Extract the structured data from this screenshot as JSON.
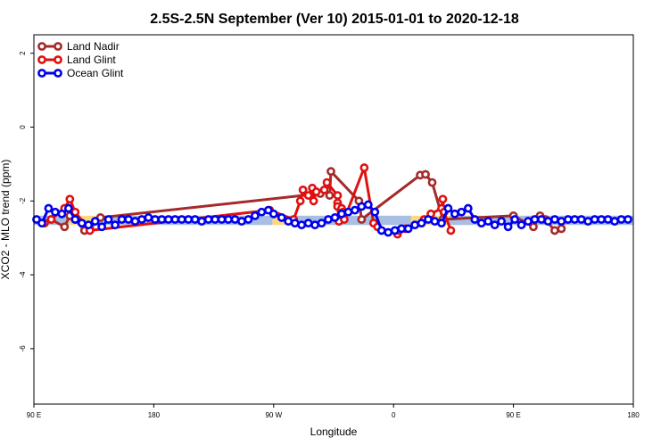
{
  "chart_data": {
    "type": "line",
    "title": "2.5S-2.5N September (Ver 10)   2015-01-01 to 2020-12-18",
    "xlabel": "Longitude",
    "ylabel": "XCO2 - MLO trend (ppm)",
    "xlim": [
      90,
      540
    ],
    "ylim": [
      -7.5,
      2.5
    ],
    "x_ticks": [
      {
        "value": 90,
        "label": "90 E"
      },
      {
        "value": 180,
        "label": "180"
      },
      {
        "value": 270,
        "label": "90 W"
      },
      {
        "value": 360,
        "label": "0"
      },
      {
        "value": 450,
        "label": "90 E"
      },
      {
        "value": 540,
        "label": "180"
      }
    ],
    "y_ticks": [
      {
        "value": 2,
        "label": "2"
      },
      {
        "value": 0,
        "label": "0"
      },
      {
        "value": -2,
        "label": "-2"
      },
      {
        "value": -4,
        "label": "-4"
      },
      {
        "value": -6,
        "label": "-6"
      }
    ],
    "legend_position": "top-left",
    "bands": [
      {
        "color": "#fdd882",
        "x_start": 90,
        "x_end": 540,
        "y_low": -2.65,
        "y_high": -2.4
      },
      {
        "color": "#a8bfe3",
        "segments": [
          [
            90,
            116
          ],
          [
            137,
            269
          ],
          [
            279,
            373
          ],
          [
            402,
            540
          ]
        ],
        "y_low": -2.65,
        "y_high": -2.4
      }
    ],
    "series": [
      {
        "name": "Land Nadir",
        "color": "#a52a2a",
        "x": [
          103,
          113,
          117,
          121,
          128,
          132,
          140,
          305,
          310,
          312,
          313,
          334,
          336,
          380,
          384,
          389,
          397,
          450,
          465,
          470,
          474,
          481,
          486
        ],
        "y": [
          -2.5,
          -2.7,
          -2.4,
          -2.5,
          -2.8,
          -2.75,
          -2.45,
          -1.8,
          -1.7,
          -1.85,
          -1.2,
          -2.0,
          -2.5,
          -1.3,
          -1.28,
          -1.5,
          -2.5,
          -2.4,
          -2.7,
          -2.4,
          -2.5,
          -2.8,
          -2.75
        ]
      },
      {
        "name": "Land Glint",
        "color": "#e01010",
        "x": [
          98,
          103,
          113,
          117,
          121,
          132,
          267,
          285,
          290,
          292,
          296,
          299,
          300,
          302,
          308,
          310,
          318,
          318,
          318,
          319,
          321,
          321,
          322,
          323,
          338,
          345,
          348,
          363,
          364,
          369,
          383,
          388,
          396,
          397,
          398,
          403
        ],
        "y": [
          -2.6,
          -2.5,
          -2.2,
          -1.95,
          -2.3,
          -2.8,
          -2.25,
          -2.5,
          -2.0,
          -1.7,
          -1.85,
          -1.65,
          -2.0,
          -1.75,
          -1.7,
          -1.5,
          -1.85,
          -2.05,
          -2.15,
          -2.55,
          -2.2,
          -2.35,
          -2.3,
          -2.5,
          -1.1,
          -2.6,
          -2.7,
          -2.9,
          -2.8,
          -2.75,
          -2.5,
          -2.35,
          -2.2,
          -1.95,
          -2.3,
          -2.8
        ]
      },
      {
        "name": "Ocean Glint",
        "color": "#0000ee",
        "x": [
          92,
          96,
          101,
          106,
          111,
          116,
          121,
          126,
          131,
          136,
          141,
          146,
          151,
          156,
          161,
          166,
          171,
          176,
          181,
          186,
          191,
          196,
          201,
          206,
          211,
          216,
          221,
          226,
          231,
          236,
          241,
          246,
          251,
          256,
          261,
          266,
          270,
          276,
          281,
          286,
          291,
          296,
          301,
          306,
          311,
          316,
          321,
          326,
          331,
          336,
          341,
          346,
          351,
          356,
          361,
          366,
          371,
          376,
          381,
          386,
          391,
          396,
          401,
          406,
          411,
          416,
          421,
          426,
          431,
          436,
          441,
          446,
          451,
          456,
          461,
          466,
          471,
          476,
          481,
          486,
          491,
          496,
          501,
          506,
          511,
          516,
          521,
          526,
          531,
          536
        ],
        "y": [
          -2.5,
          -2.6,
          -2.2,
          -2.3,
          -2.35,
          -2.2,
          -2.5,
          -2.6,
          -2.65,
          -2.55,
          -2.7,
          -2.5,
          -2.65,
          -2.5,
          -2.5,
          -2.55,
          -2.5,
          -2.45,
          -2.5,
          -2.5,
          -2.5,
          -2.5,
          -2.5,
          -2.5,
          -2.5,
          -2.55,
          -2.5,
          -2.5,
          -2.5,
          -2.5,
          -2.5,
          -2.55,
          -2.5,
          -2.4,
          -2.3,
          -2.25,
          -2.35,
          -2.45,
          -2.55,
          -2.6,
          -2.65,
          -2.6,
          -2.65,
          -2.6,
          -2.5,
          -2.45,
          -2.35,
          -2.3,
          -2.25,
          -2.15,
          -2.1,
          -2.3,
          -2.8,
          -2.85,
          -2.8,
          -2.75,
          -2.75,
          -2.65,
          -2.6,
          -2.5,
          -2.55,
          -2.6,
          -2.2,
          -2.35,
          -2.3,
          -2.2,
          -2.5,
          -2.6,
          -2.55,
          -2.65,
          -2.55,
          -2.7,
          -2.5,
          -2.65,
          -2.55,
          -2.5,
          -2.5,
          -2.55,
          -2.5,
          -2.55,
          -2.5,
          -2.5,
          -2.5,
          -2.55,
          -2.5,
          -2.5,
          -2.5,
          -2.55,
          -2.5,
          -2.5
        ]
      }
    ]
  }
}
